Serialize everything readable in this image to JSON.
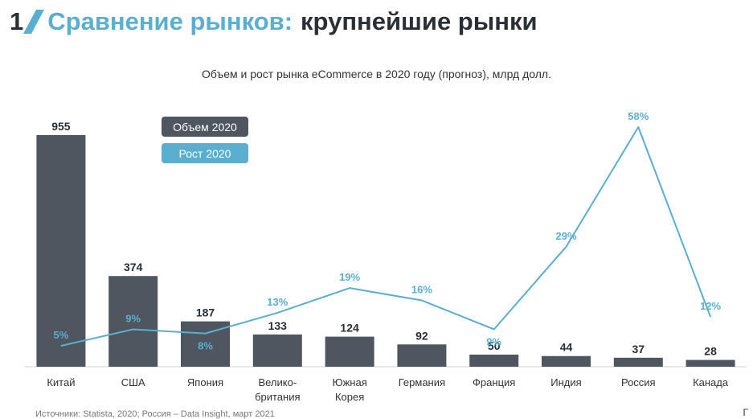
{
  "header": {
    "number": "1",
    "title_accent": "Сравнение рынков:",
    "title_rest": "крупнейшие рынки"
  },
  "chart_data": {
    "type": "bar",
    "title": "Объем и рост рынка eCommerce в 2020 году (прогноз), млрд долл.",
    "categories": [
      "Китай",
      "США",
      "Япония",
      "Велико-британия",
      "Южная Корея",
      "Германия",
      "Франция",
      "Индия",
      "Россия",
      "Канада"
    ],
    "category_lines": [
      [
        "Китай"
      ],
      [
        "США"
      ],
      [
        "Япония"
      ],
      [
        "Велико-",
        "британия"
      ],
      [
        "Южная",
        "Корея"
      ],
      [
        "Германия"
      ],
      [
        "Франция"
      ],
      [
        "Индия"
      ],
      [
        "Россия"
      ],
      [
        "Канада"
      ]
    ],
    "series": [
      {
        "name": "Объем 2020",
        "type": "bar",
        "values": [
          955,
          374,
          187,
          133,
          124,
          92,
          50,
          44,
          37,
          28
        ],
        "labels": [
          "955",
          "374",
          "187",
          "133",
          "124",
          "92",
          "50",
          "44",
          "37",
          "28"
        ],
        "color": "#4f565f"
      },
      {
        "name": "Рост 2020",
        "type": "line",
        "values": [
          5,
          9,
          8,
          13,
          19,
          16,
          9,
          29,
          58,
          12
        ],
        "labels": [
          "5%",
          "9%",
          "8%",
          "13%",
          "19%",
          "16%",
          "9%",
          "29%",
          "58%",
          "12%"
        ],
        "color": "#5aaed0"
      }
    ],
    "legend": {
      "position": "top-left"
    },
    "grid": false
  },
  "footer": {
    "source": "Источники: Statista, 2020; Россия – Data Insight, март 2021",
    "corner_mark": "Г"
  }
}
